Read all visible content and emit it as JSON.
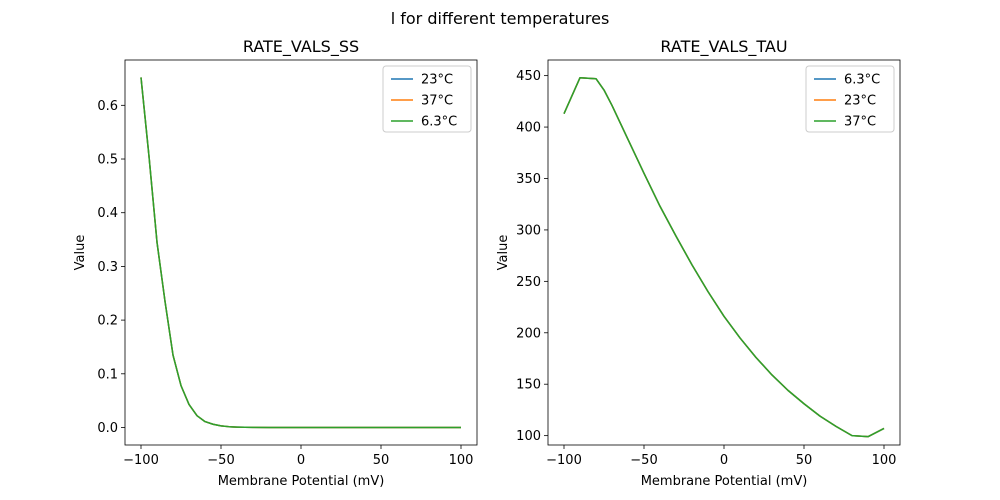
{
  "figure": {
    "title": "l for different temperatures"
  },
  "chart_data": [
    {
      "type": "line",
      "title": "RATE_VALS_SS",
      "xlabel": "Membrane Potential (mV)",
      "ylabel": "Value",
      "xlim": [
        -110,
        110
      ],
      "ylim": [
        -0.0326,
        0.6844
      ],
      "xticks": [
        -100,
        -50,
        0,
        50,
        100
      ],
      "xtick_labels": [
        "−100",
        "−50",
        "0",
        "50",
        "100"
      ],
      "yticks": [
        0.0,
        0.1,
        0.2,
        0.3,
        0.4,
        0.5,
        0.6
      ],
      "ytick_labels": [
        "0.0",
        "0.1",
        "0.2",
        "0.3",
        "0.4",
        "0.5",
        "0.6"
      ],
      "grid": false,
      "legend_position": "top-right",
      "x": [
        -100,
        -95,
        -90,
        -85,
        -80,
        -75,
        -70,
        -65,
        -60,
        -55,
        -50,
        -45,
        -40,
        -35,
        -30,
        -20,
        -10,
        0,
        25,
        50,
        75,
        100
      ],
      "series": [
        {
          "name": "23°C",
          "color": "#1f77b4",
          "values": [
            0.652,
            0.505,
            0.345,
            0.235,
            0.135,
            0.078,
            0.043,
            0.022,
            0.011,
            0.006,
            0.003,
            0.0015,
            0.0008,
            0.0004,
            0.0002,
            0.0001,
            0.0,
            0.0,
            0.0,
            0.0,
            0.0,
            0.0
          ]
        },
        {
          "name": "37°C",
          "color": "#ff7f0e",
          "values": [
            0.652,
            0.505,
            0.345,
            0.235,
            0.135,
            0.078,
            0.043,
            0.022,
            0.011,
            0.006,
            0.003,
            0.0015,
            0.0008,
            0.0004,
            0.0002,
            0.0001,
            0.0,
            0.0,
            0.0,
            0.0,
            0.0,
            0.0
          ]
        },
        {
          "name": "6.3°C",
          "color": "#2ca02c",
          "values": [
            0.652,
            0.505,
            0.345,
            0.235,
            0.135,
            0.078,
            0.043,
            0.022,
            0.011,
            0.006,
            0.003,
            0.0015,
            0.0008,
            0.0004,
            0.0002,
            0.0001,
            0.0,
            0.0,
            0.0,
            0.0,
            0.0,
            0.0
          ]
        }
      ]
    },
    {
      "type": "line",
      "title": "RATE_VALS_TAU",
      "xlabel": "Membrane Potential (mV)",
      "ylabel": "Value",
      "xlim": [
        -110,
        110
      ],
      "ylim": [
        90.9,
        465.2
      ],
      "xticks": [
        -100,
        -50,
        0,
        50,
        100
      ],
      "xtick_labels": [
        "−100",
        "−50",
        "0",
        "50",
        "100"
      ],
      "yticks": [
        100,
        150,
        200,
        250,
        300,
        350,
        400,
        450
      ],
      "ytick_labels": [
        "100",
        "150",
        "200",
        "250",
        "300",
        "350",
        "400",
        "450"
      ],
      "grid": false,
      "legend_position": "top-right",
      "x": [
        -100,
        -90,
        -80,
        -75,
        -70,
        -60,
        -50,
        -40,
        -30,
        -20,
        -10,
        0,
        10,
        20,
        30,
        40,
        50,
        60,
        70,
        80,
        90,
        100
      ],
      "series": [
        {
          "name": "6.3°C",
          "color": "#1f77b4",
          "values": [
            413,
            448,
            447,
            436,
            421,
            388,
            355,
            323,
            294,
            266,
            240,
            216,
            195,
            176,
            159,
            144,
            131,
            119,
            109,
            100,
            99,
            107
          ]
        },
        {
          "name": "23°C",
          "color": "#ff7f0e",
          "values": [
            413,
            448,
            447,
            436,
            421,
            388,
            355,
            323,
            294,
            266,
            240,
            216,
            195,
            176,
            159,
            144,
            131,
            119,
            109,
            100,
            99,
            107
          ]
        },
        {
          "name": "37°C",
          "color": "#2ca02c",
          "values": [
            413,
            448,
            447,
            436,
            421,
            388,
            355,
            323,
            294,
            266,
            240,
            216,
            195,
            176,
            159,
            144,
            131,
            119,
            109,
            100,
            99,
            107
          ]
        }
      ]
    }
  ]
}
